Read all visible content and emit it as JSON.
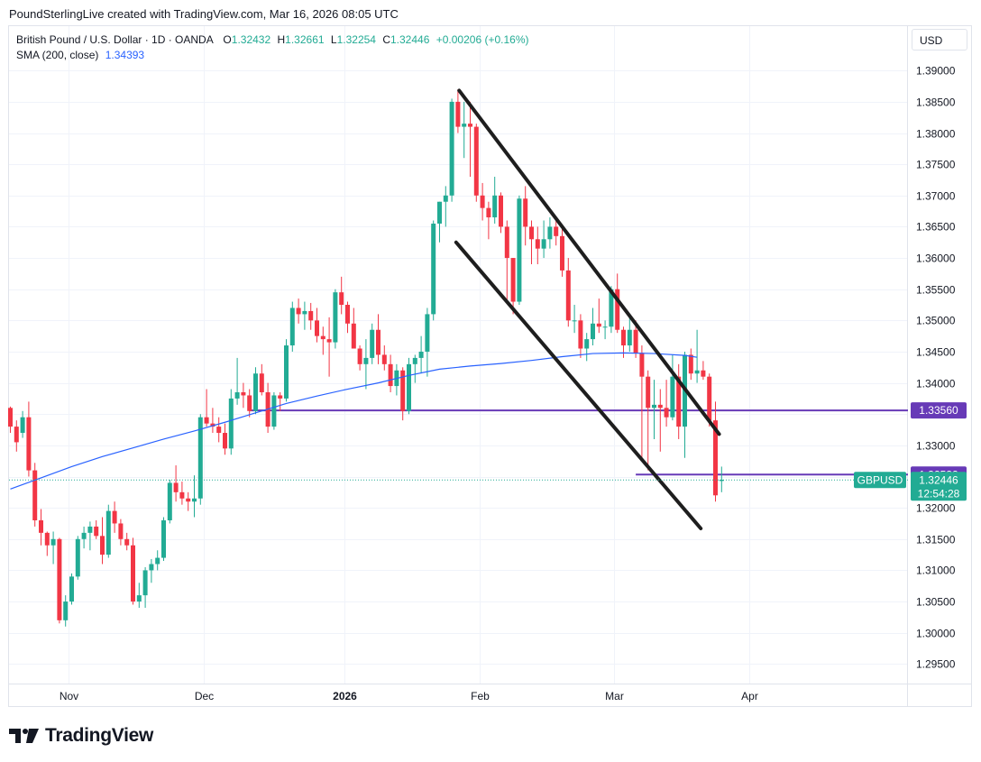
{
  "caption": "PoundSterlingLive created with TradingView.com, Mar 16, 2026 08:05 UTC",
  "legend": {
    "symbol": "British Pound / U.S. Dollar · 1D · OANDA",
    "o_label": "O",
    "o_value": "1.32432",
    "h_label": "H",
    "h_value": "1.32661",
    "l_label": "L",
    "l_value": "1.32254",
    "c_label": "C",
    "c_value": "1.32446",
    "change": "+0.00206 (+0.16%)",
    "sma_label": "SMA (200, close)",
    "sma_value": "1.34393"
  },
  "currency": "USD",
  "brand": "TradingView",
  "colors": {
    "up": "#22ab94",
    "down": "#f23645",
    "sma": "#2962ff",
    "level": "#673ab7",
    "channel": "#1e1e1e",
    "grid": "#f0f3fa",
    "axis_text": "#131722"
  },
  "chart_data": {
    "type": "candlestick",
    "symbol": "GBPUSD",
    "interval": "1D",
    "x_axis": {
      "labels": [
        "Nov",
        "Dec",
        "2026",
        "Feb",
        "Mar",
        "Apr"
      ],
      "label_index": [
        9.5,
        31.5,
        54.5,
        76.5,
        98.5,
        120.5
      ]
    },
    "y_axis": {
      "range": [
        1.2918,
        1.3935
      ],
      "ticks": [
        "1.39000",
        "1.38500",
        "1.38000",
        "1.37500",
        "1.37000",
        "1.36500",
        "1.36000",
        "1.35500",
        "1.35000",
        "1.34500",
        "1.34000",
        "1.33500",
        "1.33000",
        "1.32500",
        "1.32000",
        "1.31500",
        "1.31000",
        "1.30500",
        "1.30000",
        "1.29500"
      ]
    },
    "candles": [
      [
        1.336,
        1.3362,
        1.332,
        1.333
      ],
      [
        1.333,
        1.334,
        1.329,
        1.3305
      ],
      [
        1.332,
        1.3355,
        1.3312,
        1.3345
      ],
      [
        1.3345,
        1.337,
        1.325,
        1.326
      ],
      [
        1.326,
        1.3272,
        1.317,
        1.318
      ],
      [
        1.318,
        1.3198,
        1.314,
        1.316
      ],
      [
        1.316,
        1.3162,
        1.3123,
        1.314
      ],
      [
        1.314,
        1.3162,
        1.311,
        1.315
      ],
      [
        1.315,
        1.3152,
        1.3015,
        1.302
      ],
      [
        1.302,
        1.306,
        1.301,
        1.305
      ],
      [
        1.305,
        1.3095,
        1.3045,
        1.309
      ],
      [
        1.309,
        1.3155,
        1.3085,
        1.315
      ],
      [
        1.315,
        1.317,
        1.3135,
        1.316
      ],
      [
        1.316,
        1.3178,
        1.3132,
        1.317
      ],
      [
        1.317,
        1.318,
        1.315,
        1.3155
      ],
      [
        1.3155,
        1.3185,
        1.311,
        1.3125
      ],
      [
        1.3125,
        1.3205,
        1.312,
        1.3195
      ],
      [
        1.3195,
        1.321,
        1.316,
        1.3175
      ],
      [
        1.3175,
        1.3182,
        1.314,
        1.315
      ],
      [
        1.315,
        1.316,
        1.3132,
        1.314
      ],
      [
        1.314,
        1.3152,
        1.3045,
        1.305
      ],
      [
        1.305,
        1.308,
        1.304,
        1.306
      ],
      [
        1.306,
        1.3105,
        1.304,
        1.31
      ],
      [
        1.31,
        1.3118,
        1.308,
        1.311
      ],
      [
        1.311,
        1.3132,
        1.31,
        1.312
      ],
      [
        1.312,
        1.3185,
        1.3115,
        1.318
      ],
      [
        1.318,
        1.3245,
        1.3175,
        1.324
      ],
      [
        1.324,
        1.3268,
        1.321,
        1.3225
      ],
      [
        1.3225,
        1.3242,
        1.3205,
        1.3215
      ],
      [
        1.3215,
        1.3225,
        1.3195,
        1.321
      ],
      [
        1.321,
        1.3252,
        1.3185,
        1.3215
      ],
      [
        1.3215,
        1.335,
        1.3205,
        1.3345
      ],
      [
        1.3345,
        1.339,
        1.333,
        1.3335
      ],
      [
        1.3335,
        1.336,
        1.332,
        1.333
      ],
      [
        1.333,
        1.3345,
        1.3305,
        1.332
      ],
      [
        1.332,
        1.3335,
        1.3285,
        1.3295
      ],
      [
        1.3295,
        1.339,
        1.3285,
        1.3375
      ],
      [
        1.3375,
        1.344,
        1.3365,
        1.3385
      ],
      [
        1.3385,
        1.34,
        1.336,
        1.338
      ],
      [
        1.338,
        1.339,
        1.3345,
        1.3355
      ],
      [
        1.3355,
        1.3425,
        1.335,
        1.3415
      ],
      [
        1.3415,
        1.343,
        1.338,
        1.3385
      ],
      [
        1.3385,
        1.34,
        1.332,
        1.333
      ],
      [
        1.333,
        1.3385,
        1.3325,
        1.338
      ],
      [
        1.338,
        1.3385,
        1.3355,
        1.3375
      ],
      [
        1.3375,
        1.347,
        1.337,
        1.346
      ],
      [
        1.346,
        1.353,
        1.345,
        1.352
      ],
      [
        1.352,
        1.3535,
        1.3495,
        1.351
      ],
      [
        1.351,
        1.353,
        1.3485,
        1.3515
      ],
      [
        1.3515,
        1.3528,
        1.3485,
        1.35
      ],
      [
        1.35,
        1.352,
        1.3465,
        1.3475
      ],
      [
        1.3475,
        1.349,
        1.3445,
        1.347
      ],
      [
        1.347,
        1.3505,
        1.341,
        1.3465
      ],
      [
        1.3465,
        1.355,
        1.3455,
        1.3545
      ],
      [
        1.3545,
        1.357,
        1.351,
        1.3525
      ],
      [
        1.3525,
        1.353,
        1.348,
        1.3495
      ],
      [
        1.3495,
        1.352,
        1.3465,
        1.3455
      ],
      [
        1.3455,
        1.346,
        1.342,
        1.343
      ],
      [
        1.343,
        1.347,
        1.339,
        1.344
      ],
      [
        1.344,
        1.3495,
        1.343,
        1.3485
      ],
      [
        1.3485,
        1.351,
        1.343,
        1.3445
      ],
      [
        1.3445,
        1.346,
        1.342,
        1.343
      ],
      [
        1.343,
        1.3445,
        1.3385,
        1.3395
      ],
      [
        1.3395,
        1.343,
        1.338,
        1.342
      ],
      [
        1.342,
        1.3425,
        1.334,
        1.3355
      ],
      [
        1.3355,
        1.344,
        1.335,
        1.343
      ],
      [
        1.343,
        1.3445,
        1.34,
        1.344
      ],
      [
        1.344,
        1.3475,
        1.3415,
        1.345
      ],
      [
        1.345,
        1.352,
        1.341,
        1.351
      ],
      [
        1.351,
        1.366,
        1.35,
        1.3655
      ],
      [
        1.3655,
        1.369,
        1.3625,
        1.369
      ],
      [
        1.369,
        1.3715,
        1.365,
        1.37
      ],
      [
        1.37,
        1.3855,
        1.369,
        1.385
      ],
      [
        1.385,
        1.387,
        1.38,
        1.381
      ],
      [
        1.381,
        1.385,
        1.376,
        1.3815
      ],
      [
        1.3815,
        1.385,
        1.373,
        1.381
      ],
      [
        1.381,
        1.3815,
        1.369,
        1.37
      ],
      [
        1.37,
        1.372,
        1.366,
        1.368
      ],
      [
        1.368,
        1.369,
        1.363,
        1.3665
      ],
      [
        1.3665,
        1.373,
        1.3655,
        1.37
      ],
      [
        1.37,
        1.3705,
        1.364,
        1.365
      ],
      [
        1.365,
        1.366,
        1.353,
        1.36
      ],
      [
        1.36,
        1.36,
        1.351,
        1.353
      ],
      [
        1.353,
        1.37,
        1.3525,
        1.3695
      ],
      [
        1.3695,
        1.3715,
        1.362,
        1.365
      ],
      [
        1.365,
        1.366,
        1.359,
        1.363
      ],
      [
        1.363,
        1.365,
        1.359,
        1.3615
      ],
      [
        1.3615,
        1.366,
        1.36,
        1.363
      ],
      [
        1.363,
        1.3665,
        1.3615,
        1.365
      ],
      [
        1.365,
        1.3665,
        1.362,
        1.3635
      ],
      [
        1.3635,
        1.365,
        1.357,
        1.358
      ],
      [
        1.358,
        1.36,
        1.349,
        1.35
      ],
      [
        1.35,
        1.3525,
        1.348,
        1.35
      ],
      [
        1.35,
        1.351,
        1.344,
        1.3455
      ],
      [
        1.3455,
        1.348,
        1.3435,
        1.347
      ],
      [
        1.347,
        1.352,
        1.346,
        1.3495
      ],
      [
        1.3495,
        1.3535,
        1.348,
        1.349
      ],
      [
        1.349,
        1.35,
        1.347,
        1.349
      ],
      [
        1.349,
        1.3555,
        1.348,
        1.355
      ],
      [
        1.355,
        1.3575,
        1.348,
        1.3485
      ],
      [
        1.3485,
        1.349,
        1.344,
        1.346
      ],
      [
        1.346,
        1.351,
        1.345,
        1.3485
      ],
      [
        1.3485,
        1.35,
        1.344,
        1.3448
      ],
      [
        1.3448,
        1.346,
        1.328,
        1.341
      ],
      [
        1.341,
        1.342,
        1.326,
        1.336
      ],
      [
        1.336,
        1.3405,
        1.331,
        1.3365
      ],
      [
        1.3365,
        1.339,
        1.329,
        1.336
      ],
      [
        1.336,
        1.3405,
        1.333,
        1.3345
      ],
      [
        1.3345,
        1.3445,
        1.334,
        1.341
      ],
      [
        1.341,
        1.343,
        1.331,
        1.333
      ],
      [
        1.333,
        1.345,
        1.328,
        1.3445
      ],
      [
        1.3445,
        1.3455,
        1.3405,
        1.3415
      ],
      [
        1.3415,
        1.3485,
        1.34,
        1.342
      ],
      [
        1.342,
        1.3435,
        1.3405,
        1.341
      ],
      [
        1.341,
        1.3415,
        1.333,
        1.334
      ],
      [
        1.334,
        1.337,
        1.321,
        1.322
      ],
      [
        1.3243,
        1.3266,
        1.3225,
        1.3245
      ]
    ],
    "sma": {
      "name": "SMA (200, close)",
      "points": [
        [
          0,
          1.323
        ],
        [
          5,
          1.3248
        ],
        [
          10,
          1.3266
        ],
        [
          15,
          1.3282
        ],
        [
          20,
          1.3296
        ],
        [
          25,
          1.331
        ],
        [
          30,
          1.3323
        ],
        [
          35,
          1.3337
        ],
        [
          40,
          1.3352
        ],
        [
          45,
          1.3367
        ],
        [
          50,
          1.3379
        ],
        [
          55,
          1.339
        ],
        [
          60,
          1.34
        ],
        [
          65,
          1.3412
        ],
        [
          70,
          1.3422
        ],
        [
          75,
          1.3427
        ],
        [
          80,
          1.3431
        ],
        [
          85,
          1.3436
        ],
        [
          90,
          1.3442
        ],
        [
          95,
          1.3447
        ],
        [
          100,
          1.3448
        ],
        [
          105,
          1.3447
        ],
        [
          110,
          1.3444
        ],
        [
          112,
          1.3441
        ]
      ]
    },
    "horizontal_lines": [
      {
        "price": 1.3356,
        "label": "1.33560",
        "from_index": 39
      },
      {
        "price": 1.32532,
        "label": "1.32532",
        "from_index": 102
      }
    ],
    "last_price": {
      "symbol": "GBPUSD",
      "price": 1.32446,
      "label": "1.32446",
      "countdown": "12:54:28"
    },
    "channel_lines": [
      {
        "from": [
          73.2,
          1.3868
        ],
        "to": [
          115.6,
          1.3318
        ]
      },
      {
        "from": [
          72.7,
          1.3625
        ],
        "to": [
          112.6,
          1.3167
        ]
      }
    ]
  }
}
